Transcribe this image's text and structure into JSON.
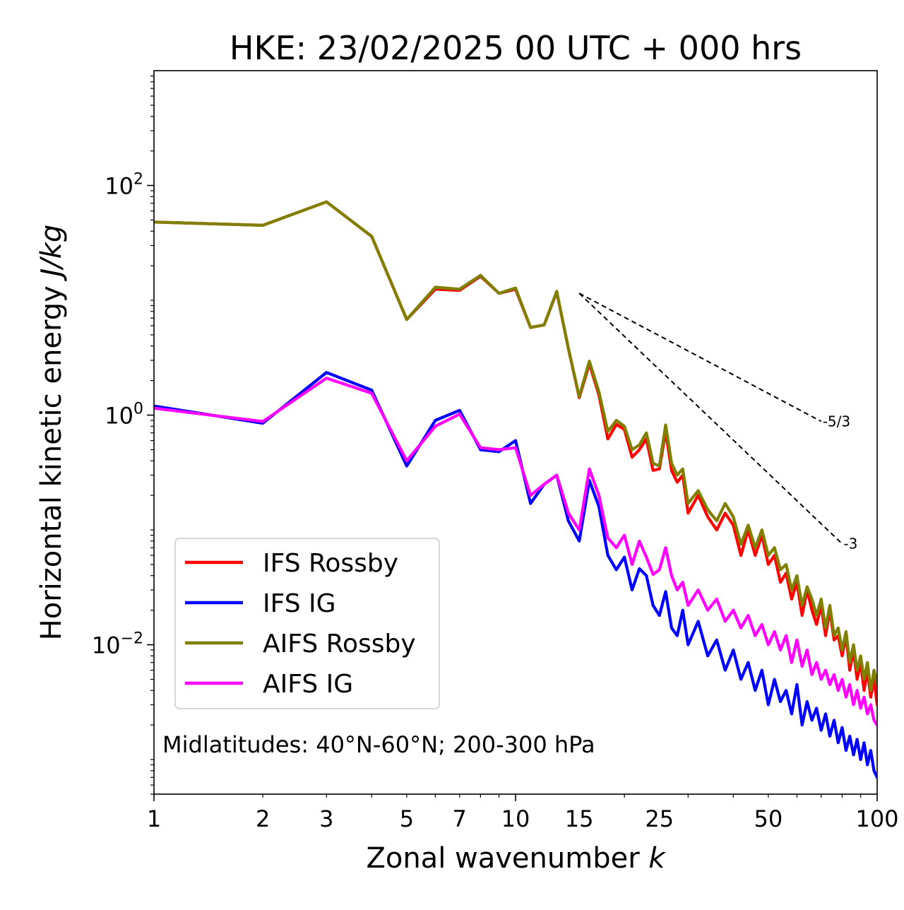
{
  "chart_data": {
    "type": "line",
    "title": "HKE: 23/02/2025 00 UTC + 000 hrs",
    "xlabel": "Zonal wavenumber",
    "xlabel_italic": "k",
    "ylabel": "Horizontal kinetic energy",
    "ylabel_italic": "J/kg",
    "x_scale": "log",
    "y_scale": "log",
    "xlim": [
      1,
      100
    ],
    "ylim": [
      0.0005,
      1000
    ],
    "x_ticks": [
      {
        "value": 1,
        "label": "1"
      },
      {
        "value": 2,
        "label": "2"
      },
      {
        "value": 3,
        "label": "3"
      },
      {
        "value": 5,
        "label": "5"
      },
      {
        "value": 7,
        "label": "7"
      },
      {
        "value": 10,
        "label": "10"
      },
      {
        "value": 15,
        "label": "15"
      },
      {
        "value": 25,
        "label": "25"
      },
      {
        "value": 50,
        "label": "50"
      },
      {
        "value": 100,
        "label": "100"
      }
    ],
    "y_ticks": [
      {
        "value": 0.01,
        "base": "10",
        "exp": "−2"
      },
      {
        "value": 1,
        "base": "10",
        "exp": "0"
      },
      {
        "value": 100,
        "base": "10",
        "exp": "2"
      }
    ],
    "grid": false,
    "legend_position": "lower-left",
    "annotation": "Midlatitudes: 40°N-60°N; 200-300 hPa",
    "reference_lines": [
      {
        "label": "-5/3",
        "slope": -1.6667,
        "x_start": 15,
        "x_end": 70,
        "y_start": 11.5
      },
      {
        "label": "-3",
        "slope": -3,
        "x_start": 15,
        "x_end": 80,
        "y_start": 11.5
      }
    ],
    "series": [
      {
        "name": "IFS Rossby",
        "color": "#ff0000",
        "x": [
          1,
          2,
          3,
          4,
          5,
          6,
          7,
          8,
          9,
          10,
          11,
          12,
          13,
          14,
          15,
          16,
          17,
          18,
          19,
          20,
          21,
          22,
          23,
          24,
          25,
          26,
          27,
          28,
          29,
          30,
          32,
          34,
          36,
          38,
          40,
          42,
          44,
          46,
          48,
          50,
          52,
          54,
          56,
          58,
          60,
          62,
          64,
          66,
          68,
          70,
          72,
          74,
          76,
          78,
          80,
          82,
          84,
          86,
          88,
          90,
          92,
          94,
          96,
          98,
          100
        ],
        "y": [
          48,
          45,
          72,
          36,
          6.8,
          12.5,
          12.2,
          16.2,
          11.5,
          12.5,
          5.8,
          6.1,
          11.8,
          3.8,
          1.42,
          2.8,
          1.5,
          0.62,
          0.83,
          0.75,
          0.43,
          0.5,
          0.62,
          0.33,
          0.34,
          0.72,
          0.33,
          0.26,
          0.3,
          0.14,
          0.2,
          0.13,
          0.1,
          0.14,
          0.11,
          0.06,
          0.1,
          0.06,
          0.09,
          0.05,
          0.06,
          0.035,
          0.042,
          0.025,
          0.035,
          0.018,
          0.03,
          0.02,
          0.015,
          0.022,
          0.012,
          0.02,
          0.011,
          0.012,
          0.008,
          0.012,
          0.006,
          0.009,
          0.005,
          0.007,
          0.004,
          0.006,
          0.0035,
          0.005,
          0.003
        ]
      },
      {
        "name": "IFS IG",
        "color": "#0000ff",
        "x": [
          1,
          2,
          3,
          4,
          5,
          6,
          7,
          8,
          9,
          10,
          11,
          12,
          13,
          14,
          15,
          16,
          17,
          18,
          19,
          20,
          21,
          22,
          23,
          24,
          25,
          26,
          27,
          28,
          29,
          30,
          32,
          34,
          36,
          38,
          40,
          42,
          44,
          46,
          48,
          50,
          52,
          54,
          56,
          58,
          60,
          62,
          64,
          66,
          68,
          70,
          72,
          74,
          76,
          78,
          80,
          82,
          84,
          86,
          88,
          90,
          92,
          94,
          96,
          98,
          100
        ],
        "y": [
          1.2,
          0.85,
          2.35,
          1.65,
          0.36,
          0.9,
          1.1,
          0.5,
          0.48,
          0.6,
          0.17,
          0.25,
          0.3,
          0.12,
          0.08,
          0.27,
          0.16,
          0.06,
          0.045,
          0.058,
          0.03,
          0.046,
          0.04,
          0.022,
          0.018,
          0.029,
          0.014,
          0.012,
          0.02,
          0.01,
          0.016,
          0.008,
          0.011,
          0.006,
          0.009,
          0.005,
          0.007,
          0.004,
          0.006,
          0.003,
          0.005,
          0.0032,
          0.004,
          0.0025,
          0.0045,
          0.002,
          0.0032,
          0.0022,
          0.0028,
          0.0018,
          0.0025,
          0.0016,
          0.0022,
          0.0014,
          0.0019,
          0.0012,
          0.0016,
          0.0011,
          0.0015,
          0.001,
          0.0014,
          0.0009,
          0.0012,
          0.0008,
          0.0007
        ]
      },
      {
        "name": "AIFS Rossby",
        "color": "#808000",
        "x": [
          1,
          2,
          3,
          4,
          5,
          6,
          7,
          8,
          9,
          10,
          11,
          12,
          13,
          14,
          15,
          16,
          17,
          18,
          19,
          20,
          21,
          22,
          23,
          24,
          25,
          26,
          27,
          28,
          29,
          30,
          32,
          34,
          36,
          38,
          40,
          42,
          44,
          46,
          48,
          50,
          52,
          54,
          56,
          58,
          60,
          62,
          64,
          66,
          68,
          70,
          72,
          74,
          76,
          78,
          80,
          82,
          84,
          86,
          88,
          90,
          92,
          94,
          96,
          98,
          100
        ],
        "y": [
          48,
          45,
          72,
          36,
          6.8,
          13,
          12.5,
          16.5,
          11.5,
          12.8,
          5.8,
          6.1,
          12,
          3.8,
          1.45,
          2.95,
          1.6,
          0.72,
          0.9,
          0.8,
          0.5,
          0.55,
          0.7,
          0.38,
          0.36,
          0.82,
          0.38,
          0.3,
          0.34,
          0.17,
          0.22,
          0.15,
          0.12,
          0.17,
          0.13,
          0.075,
          0.11,
          0.07,
          0.1,
          0.06,
          0.07,
          0.045,
          0.05,
          0.03,
          0.04,
          0.022,
          0.032,
          0.025,
          0.018,
          0.025,
          0.014,
          0.022,
          0.012,
          0.014,
          0.009,
          0.013,
          0.007,
          0.01,
          0.006,
          0.008,
          0.005,
          0.007,
          0.004,
          0.006,
          0.0045
        ]
      },
      {
        "name": "AIFS IG",
        "color": "#ff00ff",
        "x": [
          1,
          2,
          3,
          4,
          5,
          6,
          7,
          8,
          9,
          10,
          11,
          12,
          13,
          14,
          15,
          16,
          17,
          18,
          19,
          20,
          21,
          22,
          23,
          24,
          25,
          26,
          27,
          28,
          29,
          30,
          32,
          34,
          36,
          38,
          40,
          42,
          44,
          46,
          48,
          50,
          52,
          54,
          56,
          58,
          60,
          62,
          64,
          66,
          68,
          70,
          72,
          74,
          76,
          78,
          80,
          82,
          84,
          86,
          88,
          90,
          92,
          94,
          96,
          98,
          100
        ],
        "y": [
          1.15,
          0.88,
          2.1,
          1.55,
          0.4,
          0.8,
          1.02,
          0.52,
          0.5,
          0.52,
          0.2,
          0.25,
          0.3,
          0.14,
          0.1,
          0.34,
          0.2,
          0.085,
          0.07,
          0.09,
          0.05,
          0.08,
          0.058,
          0.041,
          0.045,
          0.07,
          0.04,
          0.03,
          0.035,
          0.022,
          0.03,
          0.02,
          0.025,
          0.016,
          0.02,
          0.014,
          0.018,
          0.012,
          0.015,
          0.01,
          0.013,
          0.009,
          0.012,
          0.007,
          0.011,
          0.0065,
          0.009,
          0.0055,
          0.007,
          0.005,
          0.006,
          0.0045,
          0.0055,
          0.004,
          0.005,
          0.0035,
          0.0045,
          0.003,
          0.004,
          0.0028,
          0.0035,
          0.0025,
          0.003,
          0.0022,
          0.002
        ]
      }
    ]
  }
}
